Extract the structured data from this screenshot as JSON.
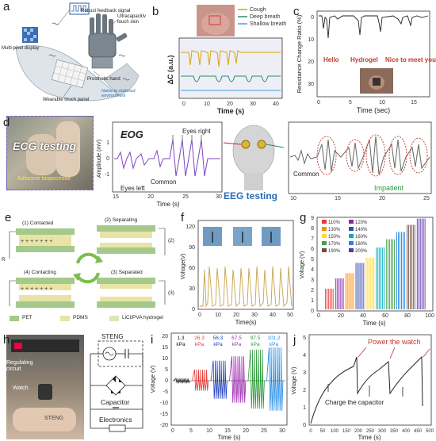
{
  "panels": {
    "a": {
      "label": "a",
      "callouts": {
        "robust": "Robust feedback signal",
        "display": "Multi-pixel display",
        "skin": "Ultracapacitive touch skin",
        "hand": "Prosthetic hand",
        "panel": "Wearable touch panel",
        "noise": "Noise in cluttered environment"
      }
    },
    "b": {
      "label": "b",
      "ylabel": "ΔC (a.u.)",
      "xlabel": "Time (s)",
      "legend": [
        "Cough",
        "Deep breath",
        "Shallow breath"
      ],
      "xticks": [
        "0",
        "10",
        "20",
        "30",
        "40"
      ],
      "colors": [
        "#d9a400",
        "#2b8c6b",
        "#4aa0d8"
      ]
    },
    "c": {
      "label": "c",
      "ylabel": "Resistance Change Ratio (%)",
      "xlabel": "Time (sec)",
      "xticks": [
        "0",
        "5",
        "10",
        "15"
      ],
      "yticks": [
        "0",
        "10",
        "20",
        "30"
      ],
      "words": [
        "Hello",
        "Hydrogel",
        "Nice to meet you"
      ]
    },
    "d": {
      "label": "d",
      "photo_title": "ECG testing",
      "photo_caption": "Adhesive biopectrode",
      "eog_title": "EOG",
      "eog_ylabel": "Amplitude (mV)",
      "eog_xlabel": "Time (s)",
      "eog_xticks": [
        "15",
        "20",
        "25",
        "30"
      ],
      "eog_yticks": [
        "-1",
        "0",
        "1"
      ],
      "eog_annotations": [
        "Eyes right",
        "Common",
        "Eyes left"
      ],
      "eeg_title": "EEG testing",
      "eeg_xticks": [
        "10",
        "15",
        "20",
        "25"
      ],
      "eeg_annotations": [
        "Common",
        "Impatient"
      ]
    },
    "e": {
      "label": "e",
      "states": [
        "(1) Contacted",
        "(2) Separating",
        "(3) Separated",
        "(4) Contacting"
      ],
      "sides": [
        "(2)",
        "(3)"
      ],
      "legend": [
        "PET",
        "PDMS",
        "LiCl/PVA hydrogel"
      ],
      "resistor": "R"
    },
    "f": {
      "label": "f",
      "ylabel": "Voltage(V)",
      "xlabel": "Time(s)",
      "xticks": [
        "0",
        "10",
        "20",
        "30",
        "40",
        "50"
      ],
      "yticks": [
        "0",
        "30",
        "60",
        "90",
        "120"
      ]
    },
    "g": {
      "label": "g",
      "ylabel": "Voltage (V)",
      "xlabel": "Time (s)",
      "xticks": [
        "0",
        "20",
        "40",
        "60",
        "80",
        "100"
      ],
      "yticks": [
        "0",
        "1",
        "2",
        "3",
        "4",
        "5",
        "6",
        "7",
        "8",
        "9"
      ],
      "legend": [
        "110%",
        "120%",
        "130%",
        "140%",
        "150%",
        "160%",
        "170%",
        "180%",
        "190%",
        "200%"
      ],
      "colors": [
        "#e53935",
        "#8e24aa",
        "#fb8c00",
        "#3949ab",
        "#fdd835",
        "#00acc1",
        "#43a047",
        "#1e88e5",
        "#6d4c41",
        "#5e35b1"
      ]
    },
    "h": {
      "label": "h",
      "photo_labels": [
        "Regulating circuit",
        "Watch",
        "STENG"
      ],
      "circuit_labels": [
        "STENG",
        "Capacitor",
        "Electronics"
      ]
    },
    "i": {
      "label": "i",
      "ylabel": "Voltage (V)",
      "xlabel": "Time (s)",
      "xticks": [
        "0",
        "5",
        "10",
        "15",
        "20",
        "25",
        "30"
      ],
      "yticks": [
        "-20",
        "-15",
        "-10",
        "-5",
        "0",
        "5",
        "10",
        "15",
        "20"
      ],
      "pressures": [
        "1.3 kPa",
        "26.3 kPa",
        "56.3 kPa",
        "67.5 kPa",
        "97.5 kPa",
        "101.2 kPa"
      ],
      "colors": [
        "#111111",
        "#e53935",
        "#1e3fbf",
        "#9c27b0",
        "#2e9a3c",
        "#1e88e5"
      ]
    },
    "j": {
      "label": "j",
      "ylabel": "Voltage (V)",
      "xlabel": "Time (s)",
      "xticks": [
        "0",
        "50",
        "100",
        "150",
        "200",
        "250",
        "300",
        "350",
        "400",
        "450",
        "500"
      ],
      "yticks": [
        "0",
        "1",
        "2",
        "3",
        "4",
        "5"
      ],
      "annotations": [
        "Power the watch",
        "Charge the capacitor"
      ]
    }
  },
  "chart_data": [
    {
      "type": "line",
      "title": "",
      "xlabel": "Time (s)",
      "ylabel": "ΔC (a.u.)",
      "xlim": [
        0,
        45
      ],
      "series": [
        {
          "name": "Cough",
          "x": [
            2,
            6,
            12,
            17,
            22,
            27,
            30
          ],
          "values": [
            1,
            1,
            1,
            1,
            1,
            1,
            1
          ]
        },
        {
          "name": "Deep breath",
          "x": [
            5,
            15,
            22,
            31,
            38
          ],
          "values": [
            1,
            1,
            1,
            1,
            1
          ]
        },
        {
          "name": "Shallow breath",
          "x": [
            0,
            45
          ],
          "values": [
            0,
            0
          ]
        }
      ]
    },
    {
      "type": "line",
      "xlabel": "Time (sec)",
      "ylabel": "Resistance Change Ratio (%)",
      "xlim": [
        0,
        18
      ],
      "ylim": [
        0,
        38
      ],
      "series": [
        {
          "name": "",
          "x": [
            0.5,
            1.2,
            5.1,
            7.5,
            9.0,
            12.4,
            13.3,
            14.0,
            16.2
          ],
          "values": [
            8,
            13,
            16,
            6,
            4,
            7,
            9,
            5,
            5
          ]
        }
      ]
    },
    {
      "type": "line",
      "xlabel": "Time(s)",
      "ylabel": "Voltage(V)",
      "xlim": [
        0,
        52
      ],
      "ylim": [
        0,
        130
      ],
      "series": [
        {
          "name": "",
          "x": [
            3,
            6,
            9,
            12,
            15,
            18,
            21,
            24,
            27,
            30,
            33,
            36,
            39,
            42,
            45,
            48,
            51
          ],
          "values": [
            90,
            100,
            95,
            100,
            90,
            100,
            95,
            100,
            85,
            100,
            95,
            100,
            90,
            100,
            95,
            100,
            100
          ]
        }
      ]
    },
    {
      "type": "bar",
      "xlabel": "Time (s)",
      "ylabel": "Voltage (V)",
      "xlim": [
        0,
        100
      ],
      "ylim": [
        0,
        9
      ],
      "categories": [
        "110%",
        "120%",
        "130%",
        "140%",
        "150%",
        "160%",
        "170%",
        "180%",
        "190%",
        "200%"
      ],
      "values": [
        2.0,
        3.0,
        3.5,
        4.5,
        5.0,
        6.0,
        6.8,
        7.5,
        8.2,
        8.8
      ]
    },
    {
      "type": "line",
      "xlabel": "Time (s)",
      "ylabel": "Voltage (V)",
      "xlim": [
        0,
        32
      ],
      "ylim": [
        -20,
        20
      ],
      "categories": [
        "1.3 kPa",
        "26.3 kPa",
        "56.3 kPa",
        "67.5 kPa",
        "97.5 kPa",
        "101.2 kPa"
      ],
      "values": [
        1,
        5,
        9,
        11,
        14,
        15
      ]
    },
    {
      "type": "line",
      "xlabel": "Time (s)",
      "ylabel": "Voltage (V)",
      "xlim": [
        0,
        500
      ],
      "ylim": [
        0,
        5
      ],
      "series": [
        {
          "name": "",
          "x": [
            0,
            50,
            100,
            150,
            180,
            183,
            220,
            280,
            310,
            313,
            350,
            400,
            460,
            463,
            480
          ],
          "values": [
            0,
            2.2,
            3.2,
            3.9,
            4.1,
            2.1,
            3.1,
            4.0,
            4.2,
            2.1,
            3.2,
            3.9,
            4.3,
            2.2,
            1.5
          ]
        }
      ]
    }
  ]
}
